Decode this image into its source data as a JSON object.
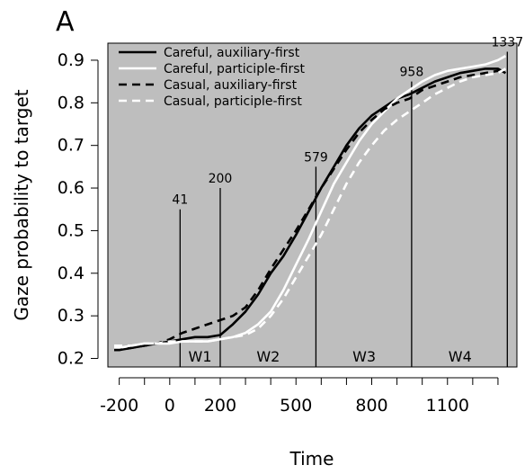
{
  "panel_label": "A",
  "chart_data": {
    "type": "line",
    "title": "",
    "xlabel": "Time",
    "ylabel": "Gaze probability to target",
    "xlim": [
      -245,
      1375
    ],
    "ylim": [
      0.18,
      0.94
    ],
    "x_ticks": [
      -200,
      -100,
      0,
      100,
      200,
      300,
      400,
      500,
      600,
      700,
      800,
      900,
      1000,
      1100,
      1200,
      1300
    ],
    "x_tick_labels": [
      {
        "value": -200,
        "label": "-200"
      },
      {
        "value": 0,
        "label": "0"
      },
      {
        "value": 200,
        "label": "200"
      },
      {
        "value": 500,
        "label": "500"
      },
      {
        "value": 800,
        "label": "800"
      },
      {
        "value": 1100,
        "label": "1100"
      }
    ],
    "y_ticks": [
      0.2,
      0.3,
      0.4,
      0.5,
      0.6,
      0.7,
      0.8,
      0.9
    ],
    "y_tick_labels": [
      "0.2",
      "0.3",
      "0.4",
      "0.5",
      "0.6",
      "0.7",
      "0.8",
      "0.9"
    ],
    "background_color": "#bebebe",
    "legend_position": "top-left",
    "markers": [
      {
        "x": 41,
        "label": "41",
        "top": 0.55
      },
      {
        "x": 200,
        "label": "200",
        "top": 0.6
      },
      {
        "x": 579,
        "label": "579",
        "top": 0.65
      },
      {
        "x": 958,
        "label": "958",
        "top": 0.85
      },
      {
        "x": 1337,
        "label": "1337",
        "top": 0.92
      }
    ],
    "windows": [
      {
        "label": "W1",
        "x": 120
      },
      {
        "label": "W2",
        "x": 390
      },
      {
        "label": "W3",
        "x": 770
      },
      {
        "label": "W4",
        "x": 1150
      }
    ],
    "series": [
      {
        "name": "Careful, auxiliary-first",
        "color": "#000000",
        "dash": "solid",
        "x": [
          -220,
          -200,
          -150,
          -100,
          -50,
          0,
          50,
          100,
          150,
          200,
          250,
          300,
          350,
          400,
          450,
          500,
          550,
          600,
          650,
          700,
          750,
          800,
          850,
          900,
          950,
          1000,
          1050,
          1100,
          1150,
          1200,
          1250,
          1300,
          1330
        ],
        "y": [
          0.22,
          0.22,
          0.225,
          0.23,
          0.235,
          0.24,
          0.245,
          0.25,
          0.25,
          0.255,
          0.28,
          0.31,
          0.35,
          0.4,
          0.44,
          0.49,
          0.545,
          0.6,
          0.65,
          0.7,
          0.74,
          0.77,
          0.79,
          0.81,
          0.82,
          0.835,
          0.85,
          0.86,
          0.87,
          0.875,
          0.88,
          0.88,
          0.87
        ]
      },
      {
        "name": "Careful, participle-first",
        "color": "#ffffff",
        "dash": "solid",
        "x": [
          -220,
          -200,
          -150,
          -100,
          -50,
          0,
          50,
          100,
          150,
          200,
          250,
          300,
          350,
          400,
          450,
          500,
          550,
          600,
          650,
          700,
          750,
          800,
          850,
          900,
          950,
          1000,
          1050,
          1100,
          1150,
          1200,
          1250,
          1300,
          1330
        ],
        "y": [
          0.225,
          0.225,
          0.23,
          0.235,
          0.235,
          0.235,
          0.24,
          0.24,
          0.24,
          0.245,
          0.25,
          0.26,
          0.28,
          0.31,
          0.36,
          0.42,
          0.48,
          0.545,
          0.61,
          0.66,
          0.71,
          0.75,
          0.78,
          0.81,
          0.83,
          0.85,
          0.865,
          0.875,
          0.88,
          0.885,
          0.89,
          0.9,
          0.91
        ]
      },
      {
        "name": "Casual, auxiliary-first",
        "color": "#000000",
        "dash": "dashed",
        "x": [
          -220,
          -200,
          -150,
          -100,
          -50,
          0,
          50,
          100,
          150,
          200,
          250,
          300,
          350,
          400,
          450,
          500,
          550,
          600,
          650,
          700,
          750,
          800,
          850,
          900,
          950,
          1000,
          1050,
          1100,
          1150,
          1200,
          1250,
          1300,
          1330
        ],
        "y": [
          0.22,
          0.22,
          0.225,
          0.23,
          0.235,
          0.245,
          0.26,
          0.27,
          0.28,
          0.29,
          0.3,
          0.32,
          0.36,
          0.41,
          0.455,
          0.5,
          0.55,
          0.6,
          0.645,
          0.69,
          0.73,
          0.76,
          0.785,
          0.8,
          0.81,
          0.83,
          0.84,
          0.85,
          0.86,
          0.865,
          0.87,
          0.875,
          0.875
        ]
      },
      {
        "name": "Casual, participle-first",
        "color": "#ffffff",
        "dash": "dashed",
        "x": [
          -220,
          -200,
          -150,
          -100,
          -50,
          0,
          50,
          100,
          150,
          200,
          250,
          300,
          350,
          400,
          450,
          500,
          550,
          600,
          650,
          700,
          750,
          800,
          850,
          900,
          950,
          1000,
          1050,
          1100,
          1150,
          1200,
          1250,
          1300,
          1330
        ],
        "y": [
          0.23,
          0.23,
          0.23,
          0.235,
          0.235,
          0.24,
          0.24,
          0.24,
          0.24,
          0.245,
          0.25,
          0.255,
          0.27,
          0.3,
          0.34,
          0.39,
          0.44,
          0.49,
          0.55,
          0.61,
          0.66,
          0.7,
          0.735,
          0.76,
          0.78,
          0.8,
          0.82,
          0.835,
          0.85,
          0.86,
          0.865,
          0.87,
          0.88
        ]
      }
    ]
  }
}
